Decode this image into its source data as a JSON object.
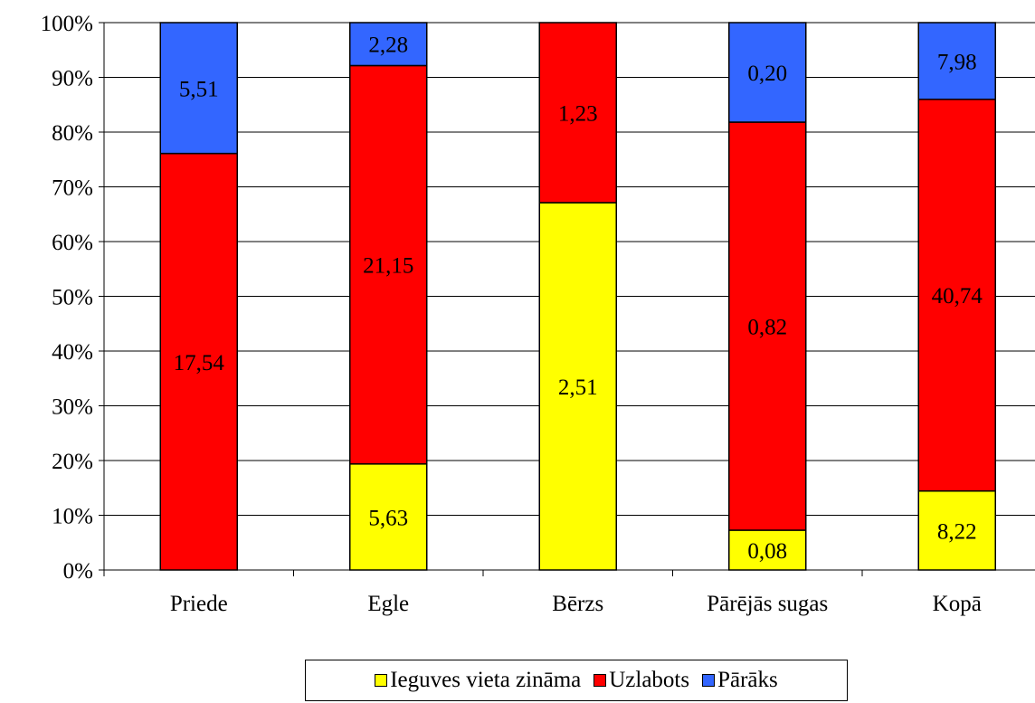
{
  "chart_data": {
    "type": "bar",
    "stacked": true,
    "normalized": true,
    "title": "",
    "xlabel": "",
    "ylabel": "",
    "ylim": [
      0,
      100
    ],
    "y_ticks": [
      "0%",
      "10%",
      "20%",
      "30%",
      "40%",
      "50%",
      "60%",
      "70%",
      "80%",
      "90%",
      "100%"
    ],
    "categories": [
      "Priede",
      "Egle",
      "Bērzs",
      "Pārējās sugas",
      "Kopā"
    ],
    "series": [
      {
        "name": "Ieguves vieta zināma",
        "color": "#ffff00",
        "values": [
          0,
          5.63,
          2.51,
          0.08,
          8.22
        ],
        "labels": [
          "",
          "5,63",
          "2,51",
          "0,08",
          "8,22"
        ]
      },
      {
        "name": "Uzlabots",
        "color": "#ff0000",
        "values": [
          17.54,
          21.15,
          1.23,
          0.82,
          40.74
        ],
        "labels": [
          "17,54",
          "21,15",
          "1,23",
          "0,82",
          "40,74"
        ]
      },
      {
        "name": "Pārāks",
        "color": "#3366ff",
        "values": [
          5.51,
          2.28,
          0,
          0.2,
          7.98
        ],
        "labels": [
          "5,51",
          "2,28",
          "",
          "0,20",
          "7,98"
        ]
      }
    ],
    "grid": true,
    "legend_position": "bottom"
  }
}
